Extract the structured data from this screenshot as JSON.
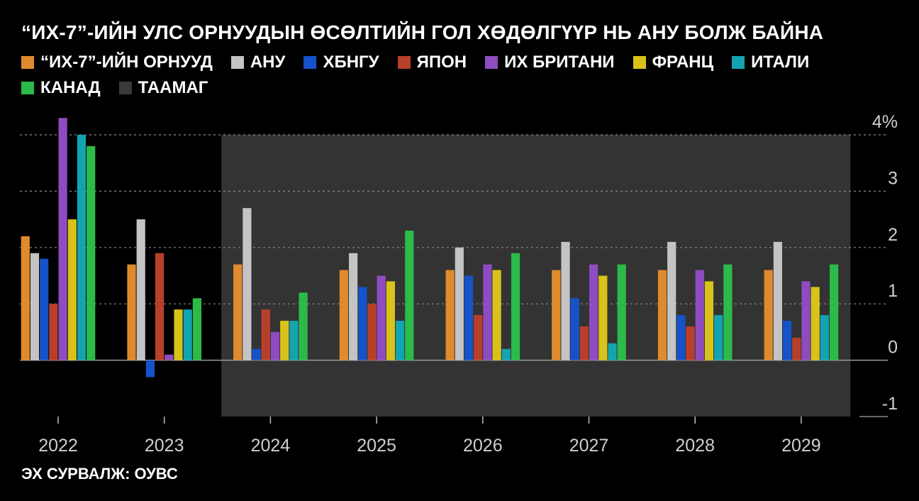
{
  "title": "“ИХ-7”-ИЙН УЛС ОРНУУДЫН ӨСӨЛТИЙН ГОЛ ХӨДӨЛГҮҮР НЬ АНУ БОЛЖ БАЙНА",
  "source": "ЭХ СУРВАЛЖ: ОУВС",
  "colors": {
    "background": "#000000",
    "forecast_shade": "#333333",
    "grid": "#8a8a8a",
    "text": "#ffffff",
    "tick_text": "#cfcfcf"
  },
  "legend": [
    {
      "label": "“ИХ-7”-ИЙН ОРНУУД",
      "color": "#e08a2e"
    },
    {
      "label": "АНУ",
      "color": "#c4c4c4"
    },
    {
      "label": "ХБНГУ",
      "color": "#1652c9"
    },
    {
      "label": "ЯПОН",
      "color": "#b8402a"
    },
    {
      "label": "ИХ БРИТАНИ",
      "color": "#8e4cc0"
    },
    {
      "label": "ФРАНЦ",
      "color": "#d9c21a"
    },
    {
      "label": "ИТАЛИ",
      "color": "#14a3b0"
    },
    {
      "label": "КАНАД",
      "color": "#2cba4a"
    },
    {
      "label": "ТААМАГ",
      "color": "#3a3a3a"
    }
  ],
  "chart_data": {
    "type": "bar",
    "categories": [
      "2022",
      "2023",
      "2024",
      "2025",
      "2026",
      "2027",
      "2028",
      "2029"
    ],
    "forecast_categories": [
      "2024",
      "2025",
      "2026",
      "2027",
      "2028",
      "2029"
    ],
    "series": [
      {
        "name": "“ИХ-7”-ИЙН ОРНУУД",
        "color": "#e08a2e",
        "values": [
          2.2,
          1.7,
          1.7,
          1.6,
          1.6,
          1.6,
          1.6,
          1.6
        ]
      },
      {
        "name": "АНУ",
        "color": "#c4c4c4",
        "values": [
          1.9,
          2.5,
          2.7,
          1.9,
          2.0,
          2.1,
          2.1,
          2.1
        ]
      },
      {
        "name": "ХБНГУ",
        "color": "#1652c9",
        "values": [
          1.8,
          -0.3,
          0.2,
          1.3,
          1.5,
          1.1,
          0.8,
          0.7
        ]
      },
      {
        "name": "ЯПОН",
        "color": "#b8402a",
        "values": [
          1.0,
          1.9,
          0.9,
          1.0,
          0.8,
          0.6,
          0.6,
          0.4
        ]
      },
      {
        "name": "ИХ БРИТАНИ",
        "color": "#8e4cc0",
        "values": [
          4.3,
          0.1,
          0.5,
          1.5,
          1.7,
          1.7,
          1.6,
          1.4
        ]
      },
      {
        "name": "ФРАНЦ",
        "color": "#d9c21a",
        "values": [
          2.5,
          0.9,
          0.7,
          1.4,
          1.6,
          1.5,
          1.4,
          1.3
        ]
      },
      {
        "name": "ИТАЛИ",
        "color": "#14a3b0",
        "values": [
          4.0,
          0.9,
          0.7,
          0.7,
          0.2,
          0.3,
          0.8,
          0.8
        ]
      },
      {
        "name": "КАНАД",
        "color": "#2cba4a",
        "values": [
          3.8,
          1.1,
          1.2,
          2.3,
          1.9,
          1.7,
          1.7,
          1.7
        ]
      }
    ],
    "yticks": [
      {
        "value": 4,
        "label": "4%"
      },
      {
        "value": 3,
        "label": "3"
      },
      {
        "value": 2,
        "label": "2"
      },
      {
        "value": 1,
        "label": "1"
      },
      {
        "value": 0,
        "label": "0"
      },
      {
        "value": -1,
        "label": "-1"
      }
    ],
    "ylim": [
      -1,
      4
    ],
    "grid": true,
    "axis_position": "right",
    "legend_position": "top"
  }
}
